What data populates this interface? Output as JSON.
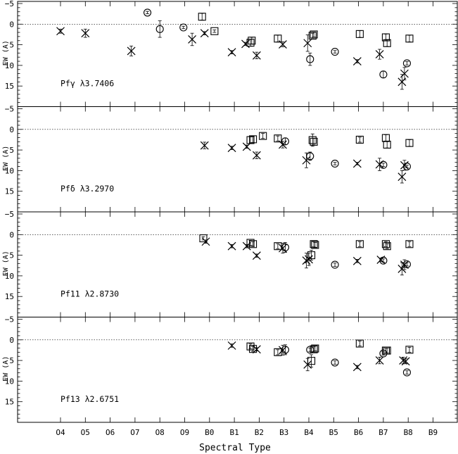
{
  "chart_data": {
    "type": "scatter",
    "xlabel": "Spectral Type",
    "ylabel": "EW (A)",
    "x_ticks": [
      "O4",
      "O5",
      "O6",
      "O7",
      "O8",
      "O9",
      "B0",
      "B1",
      "B2",
      "B3",
      "B4",
      "B5",
      "B6",
      "B7",
      "B8",
      "B9"
    ],
    "ylim": [
      -5,
      20
    ],
    "y_inverted": true,
    "y_ticks": [
      -5,
      0,
      5,
      10,
      15
    ],
    "zero_line": "dotted",
    "marker_legend": {
      "x": "cross",
      "o": "circle",
      "s": "square"
    },
    "panels": [
      {
        "label": "Pfγ λ3.7406",
        "points": [
          {
            "x": 0.0,
            "y": 1.7,
            "m": "x",
            "e": 0.5
          },
          {
            "x": 1.0,
            "y": 2.2,
            "m": "x",
            "e": 1.0
          },
          {
            "x": 2.85,
            "y": 6.5,
            "m": "x",
            "e": 1.2
          },
          {
            "x": 3.5,
            "y": -2.8,
            "m": "o",
            "e": 0.3
          },
          {
            "x": 4.0,
            "y": 1.2,
            "m": "o",
            "e": 2.0
          },
          {
            "x": 4.95,
            "y": 0.8,
            "m": "o",
            "e": 0.3
          },
          {
            "x": 5.3,
            "y": 3.7,
            "m": "x",
            "e": 1.5
          },
          {
            "x": 5.7,
            "y": -1.8,
            "m": "s",
            "e": 0.8
          },
          {
            "x": 5.8,
            "y": 2.2,
            "m": "x",
            "e": 0.4
          },
          {
            "x": 6.2,
            "y": 1.7,
            "m": "s",
            "e": 0.3
          },
          {
            "x": 6.9,
            "y": 6.8,
            "m": "x",
            "e": 0.4
          },
          {
            "x": 7.45,
            "y": 4.8,
            "m": "x",
            "e": 0.4
          },
          {
            "x": 7.65,
            "y": 4.5,
            "m": "s",
            "e": 0.8
          },
          {
            "x": 7.7,
            "y": 4.0,
            "m": "s",
            "e": 0.8
          },
          {
            "x": 7.9,
            "y": 7.6,
            "m": "x",
            "e": 0.8
          },
          {
            "x": 8.75,
            "y": 3.5,
            "m": "s",
            "e": 0.8
          },
          {
            "x": 8.95,
            "y": 4.9,
            "m": "x",
            "e": 0.6
          },
          {
            "x": 9.95,
            "y": 4.6,
            "m": "x",
            "e": 2.0
          },
          {
            "x": 10.05,
            "y": 8.5,
            "m": "o",
            "e": 1.5
          },
          {
            "x": 10.15,
            "y": 2.8,
            "m": "s",
            "e": 0.6
          },
          {
            "x": 10.2,
            "y": 2.5,
            "m": "s",
            "e": 0.6
          },
          {
            "x": 11.05,
            "y": 6.7,
            "m": "o",
            "e": 0.3
          },
          {
            "x": 12.05,
            "y": 2.4,
            "m": "s",
            "e": 0.8
          },
          {
            "x": 11.95,
            "y": 9.0,
            "m": "x",
            "e": 0.4
          },
          {
            "x": 12.85,
            "y": 7.3,
            "m": "x",
            "e": 1.2
          },
          {
            "x": 13.0,
            "y": 12.2,
            "m": "o",
            "e": 0.8
          },
          {
            "x": 13.1,
            "y": 3.2,
            "m": "s",
            "e": 0.8
          },
          {
            "x": 13.15,
            "y": 4.6,
            "m": "s",
            "e": 0.8
          },
          {
            "x": 13.75,
            "y": 14.0,
            "m": "x",
            "e": 1.8
          },
          {
            "x": 13.85,
            "y": 12.0,
            "m": "x",
            "e": 1.5
          },
          {
            "x": 13.95,
            "y": 9.5,
            "m": "o",
            "e": 0.4
          },
          {
            "x": 14.05,
            "y": 3.5,
            "m": "s",
            "e": 0.8
          }
        ]
      },
      {
        "label": "Pfδ λ3.2970",
        "points": [
          {
            "x": 5.8,
            "y": 3.9,
            "m": "x",
            "e": 0.8
          },
          {
            "x": 6.9,
            "y": 4.5,
            "m": "x",
            "e": 0.4
          },
          {
            "x": 7.5,
            "y": 4.2,
            "m": "x",
            "e": 0.4
          },
          {
            "x": 7.65,
            "y": 2.6,
            "m": "s",
            "e": 0.8
          },
          {
            "x": 7.75,
            "y": 2.4,
            "m": "s",
            "e": 0.8
          },
          {
            "x": 7.9,
            "y": 6.3,
            "m": "x",
            "e": 0.8
          },
          {
            "x": 8.15,
            "y": 1.6,
            "m": "s",
            "e": 0.6
          },
          {
            "x": 8.75,
            "y": 2.2,
            "m": "s",
            "e": 0.6
          },
          {
            "x": 8.95,
            "y": 3.7,
            "m": "x",
            "e": 0.8
          },
          {
            "x": 9.05,
            "y": 2.9,
            "m": "o",
            "e": 0.8
          },
          {
            "x": 9.9,
            "y": 7.5,
            "m": "x",
            "e": 1.8
          },
          {
            "x": 10.05,
            "y": 6.5,
            "m": "o",
            "e": 1.0
          },
          {
            "x": 10.15,
            "y": 2.6,
            "m": "s",
            "e": 1.5
          },
          {
            "x": 10.2,
            "y": 3.0,
            "m": "s",
            "e": 0.8
          },
          {
            "x": 11.05,
            "y": 8.3,
            "m": "o",
            "e": 0.3
          },
          {
            "x": 12.05,
            "y": 2.5,
            "m": "s",
            "e": 0.6
          },
          {
            "x": 11.95,
            "y": 8.3,
            "m": "x",
            "e": 0.3
          },
          {
            "x": 12.85,
            "y": 8.5,
            "m": "x",
            "e": 1.5
          },
          {
            "x": 13.0,
            "y": 8.6,
            "m": "o",
            "e": 0.4
          },
          {
            "x": 13.1,
            "y": 2.1,
            "m": "s",
            "e": 0.8
          },
          {
            "x": 13.15,
            "y": 3.7,
            "m": "s",
            "e": 0.8
          },
          {
            "x": 13.75,
            "y": 11.5,
            "m": "x",
            "e": 1.5
          },
          {
            "x": 13.85,
            "y": 8.7,
            "m": "x",
            "e": 1.2
          },
          {
            "x": 13.95,
            "y": 9.0,
            "m": "o",
            "e": 0.3
          },
          {
            "x": 14.05,
            "y": 3.3,
            "m": "s",
            "e": 0.8
          }
        ]
      },
      {
        "label": "Pf11 λ2.8730",
        "points": [
          {
            "x": 5.75,
            "y": 0.9,
            "m": "s",
            "e": 0.4
          },
          {
            "x": 5.85,
            "y": 1.7,
            "m": "x",
            "e": 0.4
          },
          {
            "x": 6.9,
            "y": 2.8,
            "m": "x",
            "e": 0.4
          },
          {
            "x": 7.5,
            "y": 2.8,
            "m": "x",
            "e": 0.4
          },
          {
            "x": 7.65,
            "y": 2.0,
            "m": "s",
            "e": 0.6
          },
          {
            "x": 7.75,
            "y": 2.3,
            "m": "s",
            "e": 0.6
          },
          {
            "x": 7.9,
            "y": 5.1,
            "m": "x",
            "e": 0.4
          },
          {
            "x": 8.75,
            "y": 2.8,
            "m": "s",
            "e": 0.6
          },
          {
            "x": 8.95,
            "y": 3.3,
            "m": "x",
            "e": 1.2
          },
          {
            "x": 9.05,
            "y": 3.1,
            "m": "o",
            "e": 1.2
          },
          {
            "x": 9.9,
            "y": 6.3,
            "m": "x",
            "e": 1.8
          },
          {
            "x": 10.0,
            "y": 6.0,
            "m": "x",
            "e": 1.5
          },
          {
            "x": 10.1,
            "y": 5.0,
            "m": "s",
            "e": 1.2
          },
          {
            "x": 10.2,
            "y": 2.3,
            "m": "s",
            "e": 0.6
          },
          {
            "x": 10.25,
            "y": 2.5,
            "m": "s",
            "e": 0.6
          },
          {
            "x": 11.05,
            "y": 7.3,
            "m": "o",
            "e": 0.4
          },
          {
            "x": 12.05,
            "y": 2.3,
            "m": "s",
            "e": 0.6
          },
          {
            "x": 11.95,
            "y": 6.4,
            "m": "x",
            "e": 0.4
          },
          {
            "x": 12.9,
            "y": 6.1,
            "m": "x",
            "e": 0.4
          },
          {
            "x": 13.0,
            "y": 6.3,
            "m": "o",
            "e": 0.4
          },
          {
            "x": 13.1,
            "y": 2.3,
            "m": "s",
            "e": 0.6
          },
          {
            "x": 13.15,
            "y": 2.8,
            "m": "s",
            "e": 0.6
          },
          {
            "x": 13.75,
            "y": 8.3,
            "m": "x",
            "e": 1.5
          },
          {
            "x": 13.85,
            "y": 7.3,
            "m": "x",
            "e": 1.2
          },
          {
            "x": 13.95,
            "y": 7.2,
            "m": "o",
            "e": 0.4
          },
          {
            "x": 14.05,
            "y": 2.3,
            "m": "s",
            "e": 0.6
          }
        ]
      },
      {
        "label": "Pf13 λ2.6751",
        "points": [
          {
            "x": 6.9,
            "y": 1.4,
            "m": "x",
            "e": 0.4
          },
          {
            "x": 7.65,
            "y": 1.6,
            "m": "s",
            "e": 0.6
          },
          {
            "x": 7.75,
            "y": 2.2,
            "m": "s",
            "e": 0.6
          },
          {
            "x": 7.9,
            "y": 2.3,
            "m": "x",
            "e": 0.4
          },
          {
            "x": 8.75,
            "y": 3.0,
            "m": "s",
            "e": 0.6
          },
          {
            "x": 8.95,
            "y": 2.5,
            "m": "x",
            "e": 1.2
          },
          {
            "x": 9.05,
            "y": 2.4,
            "m": "o",
            "e": 1.2
          },
          {
            "x": 9.95,
            "y": 6.0,
            "m": "x",
            "e": 1.5
          },
          {
            "x": 10.05,
            "y": 2.4,
            "m": "o",
            "e": 0.4
          },
          {
            "x": 10.1,
            "y": 5.1,
            "m": "s",
            "e": 1.5
          },
          {
            "x": 10.2,
            "y": 2.3,
            "m": "s",
            "e": 0.6
          },
          {
            "x": 10.25,
            "y": 2.1,
            "m": "s",
            "e": 0.6
          },
          {
            "x": 11.05,
            "y": 5.5,
            "m": "o",
            "e": 0.4
          },
          {
            "x": 12.05,
            "y": 0.9,
            "m": "s",
            "e": 0.6
          },
          {
            "x": 11.95,
            "y": 6.6,
            "m": "x",
            "e": 0.4
          },
          {
            "x": 12.85,
            "y": 5.0,
            "m": "x",
            "e": 0.8
          },
          {
            "x": 13.0,
            "y": 3.3,
            "m": "o",
            "e": 0.4
          },
          {
            "x": 13.1,
            "y": 2.6,
            "m": "s",
            "e": 0.6
          },
          {
            "x": 13.15,
            "y": 2.6,
            "m": "s",
            "e": 0.6
          },
          {
            "x": 13.8,
            "y": 5.0,
            "m": "x",
            "e": 0.8
          },
          {
            "x": 13.9,
            "y": 5.2,
            "m": "x",
            "e": 0.6
          },
          {
            "x": 13.95,
            "y": 7.9,
            "m": "o",
            "e": 0.4
          },
          {
            "x": 14.05,
            "y": 2.4,
            "m": "s",
            "e": 0.6
          }
        ]
      }
    ]
  }
}
